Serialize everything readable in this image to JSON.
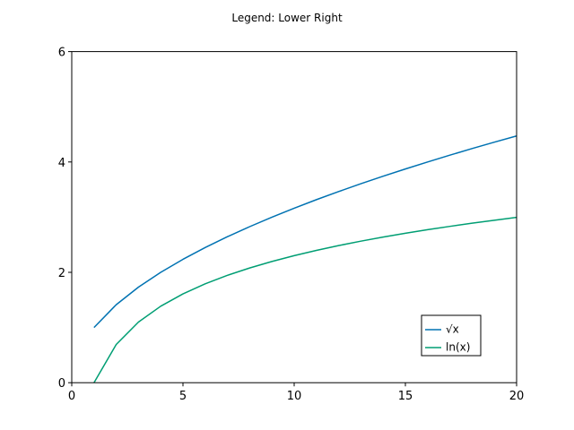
{
  "chart_data": {
    "type": "line",
    "title": "Legend: Lower Right",
    "xlabel": "",
    "ylabel": "",
    "xlim": [
      0,
      20
    ],
    "ylim": [
      0,
      6
    ],
    "xticks": [
      0,
      5,
      10,
      15,
      20
    ],
    "yticks": [
      0,
      2,
      4,
      6
    ],
    "grid": false,
    "legend_position": "lower-right",
    "x": [
      1,
      2,
      3,
      4,
      5,
      6,
      7,
      8,
      9,
      10,
      11,
      12,
      13,
      14,
      15,
      16,
      17,
      18,
      19,
      20
    ],
    "series": [
      {
        "name": "√x",
        "color": "#0072b2",
        "values": [
          1.0,
          1.414,
          1.732,
          2.0,
          2.236,
          2.449,
          2.646,
          2.828,
          3.0,
          3.162,
          3.317,
          3.464,
          3.606,
          3.742,
          3.873,
          4.0,
          4.123,
          4.243,
          4.359,
          4.472
        ]
      },
      {
        "name": "ln(x)",
        "color": "#009e73",
        "values": [
          0.0,
          0.693,
          1.099,
          1.386,
          1.609,
          1.792,
          1.946,
          2.079,
          2.197,
          2.303,
          2.398,
          2.485,
          2.565,
          2.639,
          2.708,
          2.773,
          2.833,
          2.89,
          2.944,
          2.996
        ]
      }
    ]
  }
}
